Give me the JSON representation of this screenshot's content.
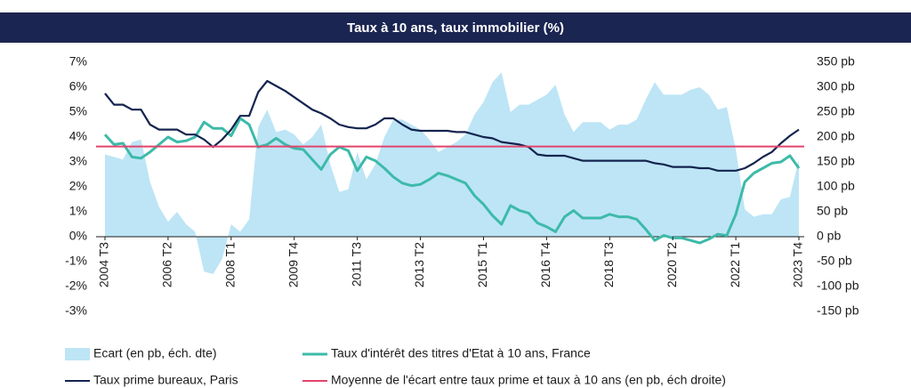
{
  "chart_data": {
    "type": "line",
    "title": "Taux à 10 ans, taux immobilier (%)",
    "categories": [
      "2004 T3",
      null,
      null,
      null,
      null,
      null,
      null,
      "2006 T2",
      null,
      null,
      null,
      null,
      null,
      null,
      "2008 T1",
      null,
      null,
      null,
      null,
      null,
      null,
      "2009 T4",
      null,
      null,
      null,
      null,
      null,
      null,
      "2011 T3",
      null,
      null,
      null,
      null,
      null,
      null,
      "2013 T2",
      null,
      null,
      null,
      null,
      null,
      null,
      "2015 T1",
      null,
      null,
      null,
      null,
      null,
      null,
      "2016 T4",
      null,
      null,
      null,
      null,
      null,
      null,
      "2018 T3",
      null,
      null,
      null,
      null,
      null,
      null,
      "2020 T2",
      null,
      null,
      null,
      null,
      null,
      null,
      "2022 T1",
      null,
      null,
      null,
      null,
      null,
      null,
      "2023 T4"
    ],
    "ylim": [
      -3,
      7
    ],
    "yticks": [
      {
        "value": -3,
        "label": "-3%"
      },
      {
        "value": -2,
        "label": "-2%"
      },
      {
        "value": -1,
        "label": "-1%"
      },
      {
        "value": 0,
        "label": "0%"
      },
      {
        "value": 1,
        "label": "1%"
      },
      {
        "value": 2,
        "label": "2%"
      },
      {
        "value": 3,
        "label": "3%"
      },
      {
        "value": 4,
        "label": "4%"
      },
      {
        "value": 5,
        "label": "5%"
      },
      {
        "value": 6,
        "label": "6%"
      },
      {
        "value": 7,
        "label": "7%"
      }
    ],
    "y2lim": [
      -150,
      350
    ],
    "y2ticks": [
      {
        "value": -150,
        "label": "-150 pb"
      },
      {
        "value": -100,
        "label": "-100 pb"
      },
      {
        "value": -50,
        "label": "-50 pb"
      },
      {
        "value": 0,
        "label": "0 pb"
      },
      {
        "value": 50,
        "label": "50 pb"
      },
      {
        "value": 100,
        "label": "100 pb"
      },
      {
        "value": 150,
        "label": "150 pb"
      },
      {
        "value": 200,
        "label": "200 pb"
      },
      {
        "value": 250,
        "label": "250 pb"
      },
      {
        "value": 300,
        "label": "300 pb"
      },
      {
        "value": 350,
        "label": "350 pb"
      }
    ],
    "legend": "bottom",
    "series": [
      {
        "name": "Ecart (en pb, éch. dte)",
        "type": "area",
        "axis": "y2",
        "color": "#bde5f6",
        "values": [
          165,
          160,
          155,
          190,
          195,
          110,
          60,
          30,
          50,
          25,
          10,
          -70,
          -75,
          -45,
          25,
          10,
          35,
          220,
          255,
          210,
          215,
          205,
          185,
          200,
          225,
          145,
          90,
          95,
          170,
          115,
          145,
          200,
          235,
          235,
          225,
          215,
          195,
          170,
          180,
          190,
          205,
          245,
          270,
          310,
          330,
          250,
          265,
          265,
          275,
          285,
          305,
          245,
          210,
          230,
          230,
          230,
          215,
          225,
          225,
          235,
          275,
          310,
          285,
          285,
          285,
          295,
          300,
          285,
          255,
          260,
          175,
          55,
          40,
          45,
          45,
          75,
          80,
          155
        ]
      },
      {
        "name": "Taux d'intérêt des titres d'Etat à 10 ans, France",
        "type": "line",
        "color": "#3dbaa9",
        "values": [
          4.1,
          3.7,
          3.75,
          3.2,
          3.15,
          3.4,
          3.7,
          4.0,
          3.8,
          3.85,
          4.0,
          4.6,
          4.35,
          4.35,
          4.05,
          4.75,
          4.5,
          3.6,
          3.7,
          3.95,
          3.7,
          3.55,
          3.5,
          3.1,
          2.7,
          3.3,
          3.6,
          3.45,
          2.65,
          3.2,
          3.05,
          2.75,
          2.4,
          2.15,
          2.05,
          2.1,
          2.3,
          2.55,
          2.45,
          2.3,
          2.15,
          1.65,
          1.3,
          0.85,
          0.5,
          1.25,
          1.05,
          0.95,
          0.55,
          0.4,
          0.2,
          0.8,
          1.05,
          0.75,
          0.75,
          0.75,
          0.9,
          0.8,
          0.8,
          0.7,
          0.3,
          -0.15,
          0.05,
          -0.05,
          -0.05,
          -0.15,
          -0.25,
          -0.1,
          0.1,
          0.05,
          0.9,
          2.2,
          2.55,
          2.75,
          2.95,
          3.0,
          3.25,
          2.75
        ]
      },
      {
        "name": "Taux prime bureaux, Paris",
        "type": "line",
        "color": "#14244f",
        "values": [
          5.75,
          5.3,
          5.3,
          5.1,
          5.1,
          4.5,
          4.3,
          4.3,
          4.3,
          4.1,
          4.1,
          3.9,
          3.6,
          3.9,
          4.3,
          4.85,
          4.85,
          5.8,
          6.25,
          6.05,
          5.85,
          5.6,
          5.35,
          5.1,
          4.95,
          4.75,
          4.5,
          4.4,
          4.35,
          4.35,
          4.5,
          4.75,
          4.75,
          4.5,
          4.3,
          4.25,
          4.25,
          4.25,
          4.25,
          4.2,
          4.2,
          4.1,
          4.0,
          3.95,
          3.8,
          3.75,
          3.7,
          3.6,
          3.3,
          3.25,
          3.25,
          3.25,
          3.15,
          3.05,
          3.05,
          3.05,
          3.05,
          3.05,
          3.05,
          3.05,
          3.05,
          2.95,
          2.9,
          2.8,
          2.8,
          2.8,
          2.75,
          2.75,
          2.65,
          2.65,
          2.65,
          2.75,
          2.95,
          3.2,
          3.4,
          3.75,
          4.05,
          4.3
        ]
      },
      {
        "name": "Moyenne de l'écart entre taux prime et taux à 10 ans (en pb, éch droite)",
        "type": "hline",
        "axis": "y2",
        "color": "#e2446c",
        "value": 181
      }
    ]
  }
}
